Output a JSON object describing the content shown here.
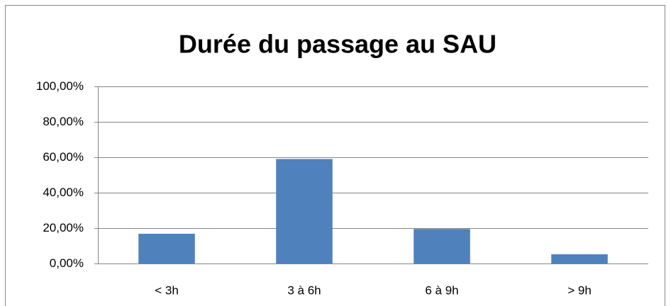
{
  "chart_data": {
    "type": "bar",
    "title": "Durée du passage au SAU",
    "categories": [
      "< 3h",
      "3 à 6h",
      "6 à 9h",
      "> 9h"
    ],
    "values": [
      16.8,
      59,
      19.5,
      5.2
    ],
    "color": "#4f81bd",
    "ylim": [
      0,
      100
    ],
    "yticks": [
      {
        "value": 0,
        "label": "0,00%"
      },
      {
        "value": 20,
        "label": "20,00%"
      },
      {
        "value": 40,
        "label": "40,00%"
      },
      {
        "value": 60,
        "label": "60,00%"
      },
      {
        "value": 80,
        "label": "80,00%"
      },
      {
        "value": 100,
        "label": "100,00%"
      }
    ],
    "grid": true
  }
}
